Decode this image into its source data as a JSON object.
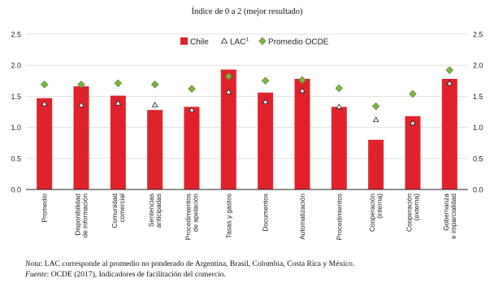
{
  "chart_data": {
    "type": "bar",
    "subtitle": "Índice de 0 a 2 (mejor resultado)",
    "categories": [
      [
        "Promedio"
      ],
      [
        "Disponibilidad",
        "de información"
      ],
      [
        "Comunidad",
        "comercial"
      ],
      [
        "Sentencias",
        "anticipadas"
      ],
      [
        "Procedimientos",
        "de apelación"
      ],
      [
        "Tasas y gastos"
      ],
      [
        "Documentos"
      ],
      [
        "Automatización"
      ],
      [
        "Procedimientos"
      ],
      [
        "Cooperación",
        "(interna)"
      ],
      [
        "Cooperación",
        "(externa)"
      ],
      [
        "Gobernanza",
        "e imparcialidad"
      ]
    ],
    "series": [
      {
        "name": "Chile",
        "kind": "bar",
        "color": "#e0232a",
        "values": [
          1.47,
          1.66,
          1.51,
          1.28,
          1.33,
          1.93,
          1.56,
          1.78,
          1.33,
          0.8,
          1.18,
          1.78
        ]
      },
      {
        "name": "LAC",
        "kind": "triangle",
        "color": "#ffffff",
        "values": [
          1.38,
          1.36,
          1.39,
          1.36,
          1.28,
          1.57,
          1.41,
          1.59,
          1.33,
          1.12,
          1.07,
          1.71
        ]
      },
      {
        "name": "Promedio OCDE",
        "kind": "diamond",
        "color": "#7cb342",
        "values": [
          1.69,
          1.69,
          1.71,
          1.69,
          1.62,
          1.82,
          1.75,
          1.76,
          1.63,
          1.34,
          1.54,
          1.92
        ]
      }
    ],
    "legend_sup": "1",
    "ylim": [
      0,
      2.5
    ],
    "yticks": [
      "0.0",
      "0.5",
      "1.0",
      "1.5",
      "2.0",
      "2.5"
    ],
    "grid": true,
    "legend_position": "top-center",
    "dual_y_axis": true
  },
  "notes": {
    "nota_label": "Nota",
    "nota_text": ": LAC corresponde al promedio no ponderado de Argentina, Brasil, Colombia, Costa Rica y México.",
    "fuente_label": "Fuente",
    "fuente_text": ": OCDE (2017), Indicadores de facilitación del comercio."
  }
}
